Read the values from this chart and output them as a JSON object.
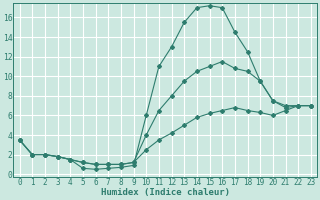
{
  "xlabel": "Humidex (Indice chaleur)",
  "bg_color": "#cce8e0",
  "grid_color": "#ffffff",
  "line_color": "#2e7d6e",
  "x_ticks": [
    0,
    1,
    2,
    3,
    4,
    5,
    6,
    7,
    8,
    9,
    10,
    11,
    12,
    13,
    14,
    15,
    16,
    17,
    18,
    19,
    20,
    21,
    22,
    23
  ],
  "y_ticks": [
    0,
    2,
    4,
    6,
    8,
    10,
    12,
    14,
    16
  ],
  "ylim": [
    -0.3,
    17.5
  ],
  "xlim": [
    -0.5,
    23.5
  ],
  "curve1_x": [
    0,
    1,
    2,
    3,
    4,
    5,
    6,
    7,
    8,
    9,
    10,
    11,
    12,
    13,
    14,
    15,
    16,
    17,
    18,
    19,
    20,
    21,
    22,
    23
  ],
  "curve1_y": [
    3.5,
    2.0,
    2.0,
    1.8,
    1.5,
    0.6,
    0.5,
    0.6,
    0.7,
    0.9,
    6.0,
    11.0,
    13.0,
    15.5,
    17.0,
    17.2,
    17.0,
    14.5,
    12.5,
    9.5,
    7.5,
    7.0,
    7.0,
    7.0
  ],
  "curve2_x": [
    0,
    1,
    2,
    3,
    4,
    5,
    6,
    7,
    8,
    9,
    10,
    11,
    12,
    13,
    14,
    15,
    16,
    17,
    18,
    19,
    20,
    21,
    22,
    23
  ],
  "curve2_y": [
    3.5,
    2.0,
    2.0,
    1.8,
    1.5,
    1.2,
    1.0,
    1.0,
    1.0,
    1.2,
    4.0,
    6.5,
    8.0,
    9.5,
    10.5,
    11.0,
    11.5,
    10.8,
    10.5,
    9.5,
    7.5,
    6.8,
    7.0,
    7.0
  ],
  "curve3_x": [
    0,
    1,
    2,
    3,
    4,
    5,
    6,
    7,
    8,
    9,
    10,
    11,
    12,
    13,
    14,
    15,
    16,
    17,
    18,
    19,
    20,
    21,
    22,
    23
  ],
  "curve3_y": [
    3.5,
    2.0,
    2.0,
    1.8,
    1.5,
    1.2,
    1.0,
    1.0,
    1.0,
    1.2,
    2.5,
    3.5,
    4.2,
    5.0,
    5.8,
    6.2,
    6.5,
    6.8,
    6.5,
    6.3,
    6.0,
    6.5,
    7.0,
    7.0
  ],
  "tick_fontsize": 5.5,
  "xlabel_fontsize": 6.5
}
